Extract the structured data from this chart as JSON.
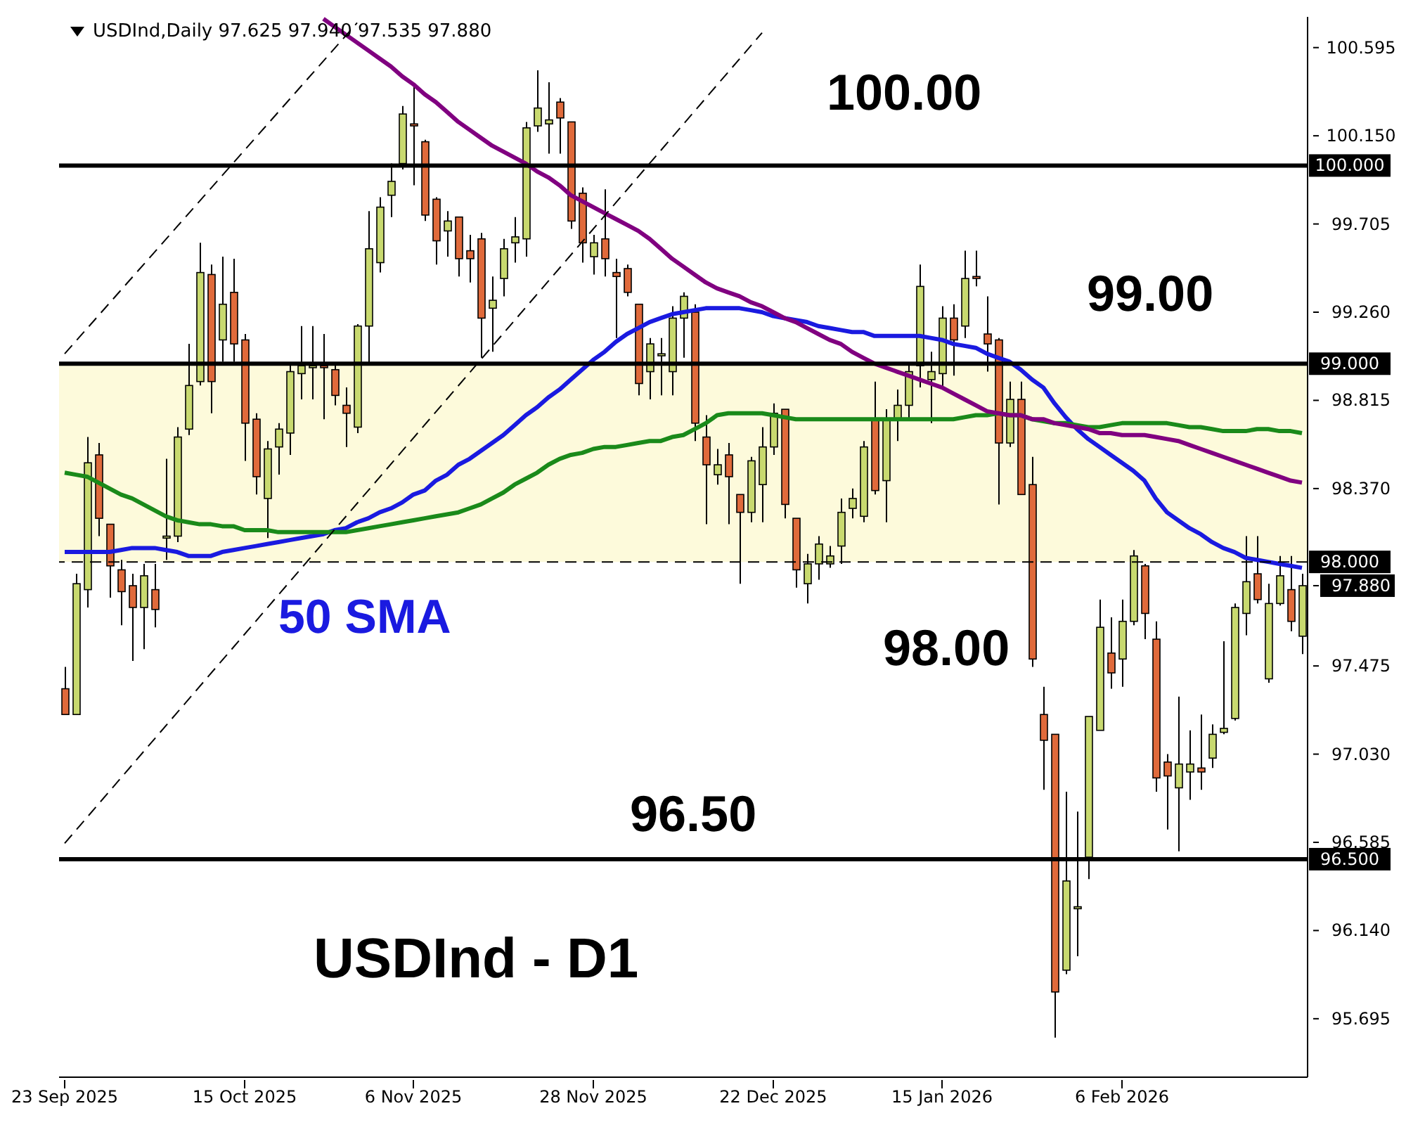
{
  "chart_data": {
    "type": "candlestick",
    "title": "USDInd - D1",
    "subtitle": "USDInd,Daily 97.625 97.940 97.535 97.880",
    "categories": [
      "23 Sep 2025",
      null,
      null,
      null,
      null,
      null,
      null,
      null,
      null,
      null,
      null,
      null,
      null,
      null,
      null,
      null,
      "15 Oct 2025",
      null,
      null,
      null,
      null,
      null,
      null,
      null,
      null,
      null,
      null,
      null,
      null,
      null,
      null,
      "6 Nov 2025",
      null,
      null,
      null,
      null,
      null,
      null,
      null,
      null,
      null,
      null,
      null,
      null,
      null,
      null,
      null,
      "28 Nov 2025",
      null,
      null,
      null,
      null,
      null,
      null,
      null,
      null,
      null,
      null,
      null,
      null,
      null,
      null,
      null,
      "22 Dec 2025",
      null,
      null,
      null,
      null,
      null,
      null,
      null,
      null,
      null,
      null,
      null,
      null,
      null,
      null,
      "15 Jan 2026",
      null,
      null,
      null,
      null,
      null,
      null,
      null,
      null,
      null,
      null,
      null,
      null,
      null,
      null,
      null,
      "6 Feb 2026",
      null,
      null,
      null,
      null,
      null,
      null,
      null,
      null,
      null,
      null,
      null,
      null,
      null,
      null,
      null,
      null
    ],
    "ohlc": [
      [
        97.36,
        97.47,
        97.23,
        97.23
      ],
      [
        97.23,
        97.94,
        97.23,
        97.89
      ],
      [
        97.86,
        98.63,
        97.77,
        98.5
      ],
      [
        98.54,
        98.6,
        98.13,
        98.22
      ],
      [
        98.19,
        98.19,
        97.82,
        97.98
      ],
      [
        97.96,
        98.01,
        97.68,
        97.85
      ],
      [
        97.88,
        97.94,
        97.5,
        97.77
      ],
      [
        97.77,
        97.99,
        97.56,
        97.93
      ],
      [
        97.86,
        97.99,
        97.67,
        97.76
      ],
      [
        98.12,
        98.52,
        98.01,
        98.13
      ],
      [
        98.13,
        98.68,
        98.1,
        98.63
      ],
      [
        98.67,
        99.1,
        98.64,
        98.89
      ],
      [
        98.91,
        99.61,
        98.89,
        99.46
      ],
      [
        99.45,
        99.5,
        98.75,
        98.91
      ],
      [
        99.12,
        99.54,
        99.01,
        99.3
      ],
      [
        99.36,
        99.53,
        99.01,
        99.1
      ],
      [
        99.12,
        99.15,
        98.51,
        98.7
      ],
      [
        98.72,
        98.75,
        98.34,
        98.43
      ],
      [
        98.32,
        98.61,
        98.12,
        98.57
      ],
      [
        98.58,
        98.7,
        98.44,
        98.67
      ],
      [
        98.65,
        98.99,
        98.54,
        98.96
      ],
      [
        98.95,
        99.19,
        98.82,
        98.99
      ],
      [
        98.98,
        99.19,
        98.82,
        98.99
      ],
      [
        98.99,
        99.15,
        98.72,
        98.98
      ],
      [
        98.97,
        98.99,
        98.79,
        98.84
      ],
      [
        98.79,
        98.88,
        98.58,
        98.75
      ],
      [
        98.68,
        99.2,
        98.65,
        99.19
      ],
      [
        99.19,
        99.77,
        98.99,
        99.58
      ],
      [
        99.51,
        99.84,
        99.46,
        99.79
      ],
      [
        99.85,
        100.01,
        99.74,
        99.92
      ],
      [
        100.01,
        100.3,
        99.98,
        100.26
      ],
      [
        100.21,
        100.41,
        99.9,
        100.2
      ],
      [
        100.12,
        100.13,
        99.72,
        99.75
      ],
      [
        99.83,
        99.84,
        99.5,
        99.62
      ],
      [
        99.67,
        99.77,
        99.54,
        99.72
      ],
      [
        99.74,
        99.74,
        99.44,
        99.53
      ],
      [
        99.57,
        99.65,
        99.41,
        99.53
      ],
      [
        99.63,
        99.66,
        99.03,
        99.23
      ],
      [
        99.28,
        99.44,
        99.06,
        99.32
      ],
      [
        99.43,
        99.63,
        99.34,
        99.58
      ],
      [
        99.61,
        99.74,
        99.51,
        99.64
      ],
      [
        99.63,
        100.22,
        99.54,
        100.19
      ],
      [
        100.2,
        100.48,
        100.17,
        100.29
      ],
      [
        100.21,
        100.42,
        100.06,
        100.23
      ],
      [
        100.32,
        100.34,
        100.06,
        100.24
      ],
      [
        100.22,
        100.22,
        99.68,
        99.72
      ],
      [
        99.86,
        99.89,
        99.51,
        99.61
      ],
      [
        99.54,
        99.65,
        99.45,
        99.61
      ],
      [
        99.63,
        99.88,
        99.44,
        99.53
      ],
      [
        99.46,
        99.53,
        99.13,
        99.44
      ],
      [
        99.48,
        99.5,
        99.34,
        99.36
      ],
      [
        99.3,
        99.3,
        98.84,
        98.9
      ],
      [
        98.96,
        99.13,
        98.82,
        99.1
      ],
      [
        99.04,
        99.13,
        98.84,
        99.05
      ],
      [
        98.96,
        99.29,
        98.84,
        99.23
      ],
      [
        99.23,
        99.36,
        99.03,
        99.34
      ],
      [
        99.26,
        99.3,
        98.61,
        98.7
      ],
      [
        98.63,
        98.74,
        98.19,
        98.49
      ],
      [
        98.44,
        98.57,
        98.39,
        98.49
      ],
      [
        98.54,
        98.6,
        98.19,
        98.43
      ],
      [
        98.34,
        98.34,
        97.89,
        98.25
      ],
      [
        98.25,
        98.53,
        98.2,
        98.51
      ],
      [
        98.39,
        98.68,
        98.2,
        98.58
      ],
      [
        98.58,
        98.8,
        98.54,
        98.75
      ],
      [
        98.77,
        98.77,
        98.22,
        98.29
      ],
      [
        98.22,
        98.22,
        97.87,
        97.96
      ],
      [
        97.89,
        98.04,
        97.79,
        97.99
      ],
      [
        97.99,
        98.13,
        97.91,
        98.09
      ],
      [
        97.99,
        98.08,
        97.97,
        98.03
      ],
      [
        98.08,
        98.32,
        97.99,
        98.25
      ],
      [
        98.27,
        98.37,
        98.22,
        98.32
      ],
      [
        98.23,
        98.61,
        98.2,
        98.58
      ],
      [
        98.72,
        98.91,
        98.34,
        98.36
      ],
      [
        98.41,
        98.77,
        98.2,
        98.72
      ],
      [
        98.72,
        98.87,
        98.61,
        98.79
      ],
      [
        98.79,
        98.99,
        98.72,
        98.96
      ],
      [
        98.99,
        99.5,
        98.88,
        99.39
      ],
      [
        98.92,
        99.06,
        98.7,
        98.96
      ],
      [
        98.95,
        99.29,
        98.88,
        99.23
      ],
      [
        99.23,
        99.3,
        98.94,
        99.12
      ],
      [
        99.19,
        99.57,
        99.13,
        99.43
      ],
      [
        99.44,
        99.57,
        99.39,
        99.43
      ],
      [
        99.15,
        99.34,
        98.96,
        99.1
      ],
      [
        99.12,
        99.13,
        98.29,
        98.6
      ],
      [
        98.6,
        98.91,
        98.58,
        98.82
      ],
      [
        98.82,
        98.91,
        98.34,
        98.34
      ],
      [
        98.39,
        98.53,
        97.47,
        97.51
      ],
      [
        97.23,
        97.37,
        96.85,
        97.1
      ],
      [
        97.13,
        97.13,
        95.6,
        95.83
      ],
      [
        95.94,
        96.84,
        95.92,
        96.39
      ],
      [
        96.25,
        96.74,
        96.01,
        96.26
      ],
      [
        96.51,
        97.22,
        96.4,
        97.22
      ],
      [
        97.15,
        97.81,
        97.15,
        97.67
      ],
      [
        97.54,
        97.72,
        97.36,
        97.44
      ],
      [
        97.51,
        97.81,
        97.37,
        97.7
      ],
      [
        97.7,
        98.06,
        97.68,
        98.03
      ],
      [
        97.98,
        97.99,
        97.61,
        97.74
      ],
      [
        97.61,
        97.7,
        96.84,
        96.91
      ],
      [
        96.99,
        97.03,
        96.65,
        96.92
      ],
      [
        96.86,
        97.32,
        96.54,
        96.98
      ],
      [
        96.94,
        97.15,
        96.8,
        96.98
      ],
      [
        96.96,
        97.23,
        96.85,
        96.94
      ],
      [
        97.01,
        97.18,
        96.96,
        97.13
      ],
      [
        97.14,
        97.6,
        97.13,
        97.16
      ],
      [
        97.21,
        97.79,
        97.2,
        97.77
      ],
      [
        97.74,
        98.13,
        97.63,
        97.9
      ],
      [
        97.94,
        98.13,
        97.79,
        97.81
      ],
      [
        97.41,
        97.89,
        97.39,
        97.79
      ],
      [
        97.79,
        98.03,
        97.78,
        97.93
      ],
      [
        97.86,
        98.03,
        97.65,
        97.7
      ],
      [
        97.625,
        97.94,
        97.535,
        97.88
      ]
    ],
    "colors": [
      "#e06a3b",
      "#c8d96f",
      "#c8d96f",
      "#e06a3b",
      "#e06a3b",
      "#e06a3b",
      "#e06a3b",
      "#c8d96f",
      "#e06a3b",
      "#c8d96f",
      "#c8d96f",
      "#c8d96f",
      "#c8d96f",
      "#e06a3b",
      "#c8d96f",
      "#e06a3b",
      "#e06a3b",
      "#e06a3b",
      "#c8d96f",
      "#c8d96f",
      "#c8d96f",
      "#c8d96f",
      "#c8d96f",
      "#e06a3b",
      "#e06a3b",
      "#e06a3b",
      "#c8d96f",
      "#c8d96f",
      "#c8d96f",
      "#c8d96f",
      "#c8d96f",
      "#e06a3b",
      "#e06a3b",
      "#e06a3b",
      "#c8d96f",
      "#e06a3b",
      "#e06a3b",
      "#e06a3b",
      "#c8d96f",
      "#c8d96f",
      "#c8d96f",
      "#c8d96f",
      "#c8d96f",
      "#c8d96f",
      "#e06a3b",
      "#e06a3b",
      "#e06a3b",
      "#c8d96f",
      "#e06a3b",
      "#e06a3b",
      "#e06a3b",
      "#e06a3b",
      "#c8d96f",
      "#c8d96f",
      "#c8d96f",
      "#c8d96f",
      "#e06a3b",
      "#e06a3b",
      "#c8d96f",
      "#e06a3b",
      "#e06a3b",
      "#c8d96f",
      "#c8d96f",
      "#c8d96f",
      "#e06a3b",
      "#e06a3b",
      "#c8d96f",
      "#c8d96f",
      "#c8d96f",
      "#c8d96f",
      "#c8d96f",
      "#c8d96f",
      "#e06a3b",
      "#c8d96f",
      "#c8d96f",
      "#c8d96f",
      "#c8d96f",
      "#c8d96f",
      "#c8d96f",
      "#e06a3b",
      "#c8d96f",
      "#e06a3b",
      "#e06a3b",
      "#e06a3b",
      "#c8d96f",
      "#e06a3b",
      "#e06a3b",
      "#e06a3b",
      "#e06a3b",
      "#c8d96f",
      "#c8d96f",
      "#c8d96f",
      "#c8d96f",
      "#e06a3b",
      "#c8d96f",
      "#c8d96f",
      "#e06a3b",
      "#e06a3b",
      "#e06a3b",
      "#c8d96f",
      "#c8d96f",
      "#e06a3b",
      "#c8d96f",
      "#c8d96f",
      "#c8d96f",
      "#c8d96f",
      "#e06a3b",
      "#c8d96f",
      "#c8d96f",
      "#e06a3b",
      "#c8d96f"
    ],
    "series": [
      {
        "type": "line",
        "name": "50 SMA",
        "color": "#1a1ae0",
        "values": [
          98.05,
          98.05,
          98.05,
          98.05,
          98.05,
          98.06,
          98.07,
          98.07,
          98.07,
          98.06,
          98.05,
          98.03,
          98.03,
          98.03,
          98.05,
          98.06,
          98.07,
          98.08,
          98.09,
          98.1,
          98.11,
          98.12,
          98.13,
          98.14,
          98.16,
          98.17,
          98.2,
          98.22,
          98.25,
          98.27,
          98.3,
          98.34,
          98.36,
          98.41,
          98.44,
          98.49,
          98.52,
          98.56,
          98.6,
          98.64,
          98.69,
          98.74,
          98.78,
          98.83,
          98.87,
          98.92,
          98.97,
          99.02,
          99.06,
          99.11,
          99.15,
          99.18,
          99.21,
          99.23,
          99.25,
          99.26,
          99.27,
          99.28,
          99.28,
          99.28,
          99.28,
          99.27,
          99.26,
          99.24,
          99.23,
          99.22,
          99.21,
          99.19,
          99.18,
          99.17,
          99.16,
          99.16,
          99.14,
          99.14,
          99.14,
          99.14,
          99.14,
          99.13,
          99.12,
          99.1,
          99.09,
          99.08,
          99.05,
          99.03,
          99.01,
          98.97,
          98.92,
          98.88,
          98.8,
          98.73,
          98.67,
          98.62,
          98.58,
          98.54,
          98.5,
          98.46,
          98.41,
          98.32,
          98.25,
          98.21,
          98.17,
          98.14,
          98.1,
          98.07,
          98.05,
          98.02,
          98.01,
          98.0,
          97.99,
          97.98,
          97.97
        ]
      },
      {
        "type": "line",
        "color": "#1a8a1a",
        "values": [
          98.45,
          98.44,
          98.43,
          98.4,
          98.37,
          98.34,
          98.32,
          98.29,
          98.26,
          98.23,
          98.21,
          98.2,
          98.19,
          98.19,
          98.18,
          98.18,
          98.16,
          98.16,
          98.16,
          98.15,
          98.15,
          98.15,
          98.15,
          98.15,
          98.15,
          98.15,
          98.16,
          98.17,
          98.18,
          98.19,
          98.2,
          98.21,
          98.22,
          98.23,
          98.24,
          98.25,
          98.27,
          98.29,
          98.32,
          98.35,
          98.39,
          98.42,
          98.45,
          98.49,
          98.52,
          98.54,
          98.55,
          98.57,
          98.58,
          98.58,
          98.59,
          98.6,
          98.61,
          98.61,
          98.63,
          98.64,
          98.67,
          98.7,
          98.74,
          98.75,
          98.75,
          98.75,
          98.75,
          98.74,
          98.73,
          98.72,
          98.72,
          98.72,
          98.72,
          98.72,
          98.72,
          98.72,
          98.72,
          98.72,
          98.72,
          98.72,
          98.72,
          98.72,
          98.72,
          98.72,
          98.73,
          98.74,
          98.74,
          98.75,
          98.74,
          98.74,
          98.72,
          98.71,
          98.7,
          98.7,
          98.69,
          98.68,
          98.68,
          98.69,
          98.7,
          98.7,
          98.7,
          98.7,
          98.7,
          98.69,
          98.68,
          98.68,
          98.67,
          98.66,
          98.66,
          98.66,
          98.67,
          98.67,
          98.66,
          98.66,
          98.65
        ]
      },
      {
        "type": "line",
        "color": "#800080",
        "values": [
          null,
          null,
          null,
          null,
          null,
          null,
          null,
          null,
          null,
          null,
          null,
          null,
          null,
          null,
          null,
          null,
          null,
          null,
          null,
          null,
          null,
          null,
          null,
          100.74,
          100.7,
          100.66,
          100.62,
          100.58,
          100.54,
          100.5,
          100.45,
          100.41,
          100.36,
          100.32,
          100.27,
          100.22,
          100.18,
          100.14,
          100.1,
          100.07,
          100.04,
          100.01,
          99.97,
          99.94,
          99.9,
          99.85,
          99.82,
          99.79,
          99.76,
          99.73,
          99.7,
          99.67,
          99.63,
          99.58,
          99.53,
          99.49,
          99.45,
          99.41,
          99.38,
          99.36,
          99.34,
          99.31,
          99.29,
          99.26,
          99.23,
          99.21,
          99.18,
          99.15,
          99.12,
          99.1,
          99.06,
          99.03,
          99.0,
          98.98,
          98.96,
          98.94,
          98.92,
          98.9,
          98.88,
          98.85,
          98.82,
          98.79,
          98.76,
          98.75,
          98.74,
          98.74,
          98.72,
          98.72,
          98.7,
          98.69,
          98.68,
          98.67,
          98.65,
          98.65,
          98.64,
          98.64,
          98.64,
          98.63,
          98.62,
          98.61,
          98.59,
          98.57,
          98.55,
          98.53,
          98.51,
          98.49,
          98.47,
          98.45,
          98.43,
          98.41,
          98.4
        ]
      },
      {
        "type": "line",
        "color": "#000000",
        "line_style": "dashed",
        "values": [
          99.05,
          null,
          null,
          null,
          null,
          null,
          null,
          null,
          null,
          null,
          null,
          null,
          null,
          null,
          null,
          null,
          null,
          null,
          null,
          null,
          null,
          null,
          null,
          null,
          null,
          null,
          100.72,
          null,
          null,
          null,
          null,
          null,
          null,
          null,
          null,
          null,
          null,
          null,
          null,
          null,
          null,
          null,
          null,
          null,
          null,
          null,
          null,
          null,
          null,
          null,
          null,
          null,
          null,
          null,
          null,
          null,
          null,
          null,
          null,
          null,
          null,
          null,
          null,
          null,
          null,
          null,
          null,
          null,
          null,
          null,
          null,
          null,
          null,
          null,
          null,
          null,
          null,
          null,
          null,
          null,
          null,
          null,
          null,
          null,
          null,
          null,
          null,
          null,
          null,
          null,
          null,
          null,
          null,
          null,
          null,
          null,
          null,
          null,
          null,
          null,
          null,
          null,
          null,
          null,
          null,
          null,
          null,
          null,
          null,
          null,
          null
        ]
      },
      {
        "type": "line",
        "color": "#000000",
        "line_style": "dashed",
        "values": [
          96.58,
          null,
          null,
          null,
          null,
          null,
          null,
          null,
          null,
          null,
          null,
          null,
          null,
          null,
          null,
          null,
          null,
          null,
          null,
          null,
          null,
          null,
          null,
          null,
          null,
          null,
          null,
          null,
          null,
          null,
          null,
          null,
          null,
          null,
          null,
          null,
          null,
          null,
          null,
          null,
          null,
          null,
          null,
          null,
          null,
          null,
          null,
          null,
          null,
          null,
          null,
          null,
          null,
          null,
          null,
          null,
          null,
          null,
          null,
          null,
          null,
          null,
          100.67,
          null,
          null,
          null,
          null,
          null,
          null,
          null,
          null,
          null,
          null,
          null,
          null,
          null,
          null,
          null,
          null,
          null,
          null,
          null,
          null,
          null,
          null,
          null,
          null,
          null,
          null,
          null,
          null,
          null,
          null,
          null,
          null,
          null,
          null,
          null,
          null,
          null,
          null,
          null,
          null,
          null,
          null,
          null,
          null,
          null,
          null,
          null,
          null
        ]
      }
    ],
    "ylim": [
      95.4,
      100.75
    ],
    "yticks": [
      100.595,
      {
        "value": 100.15,
        "label": "100.150"
      },
      99.705,
      {
        "value": 99.26,
        "label": "99.260"
      },
      98.815,
      {
        "value": 98.37,
        "label": "98.370"
      },
      {
        "value": 97.88,
        "label": "97.880"
      },
      97.475,
      {
        "value": 97.03,
        "label": "97.030"
      },
      96.585,
      {
        "value": 96.14,
        "label": "96.140"
      },
      95.695
    ],
    "ref_lines": [
      {
        "axis": "y",
        "value": 100,
        "label": "100.000",
        "color": "#000000",
        "line_style": "solid"
      },
      {
        "axis": "y",
        "value": 99,
        "label": "99.000",
        "color": "#000000",
        "line_style": "solid"
      },
      {
        "axis": "y",
        "value": 98,
        "label": "98.000",
        "color": "#000000",
        "line_style": "dashed"
      },
      {
        "axis": "y",
        "value": 96.5,
        "label": "96.500",
        "color": "#000000",
        "line_style": "solid"
      }
    ],
    "bands": [
      {
        "axis": "y",
        "from": 98,
        "to": 99,
        "color": "#fdfadb"
      }
    ],
    "annotations": [
      "100.00",
      "99.00",
      "98.00",
      "96.50"
    ]
  }
}
